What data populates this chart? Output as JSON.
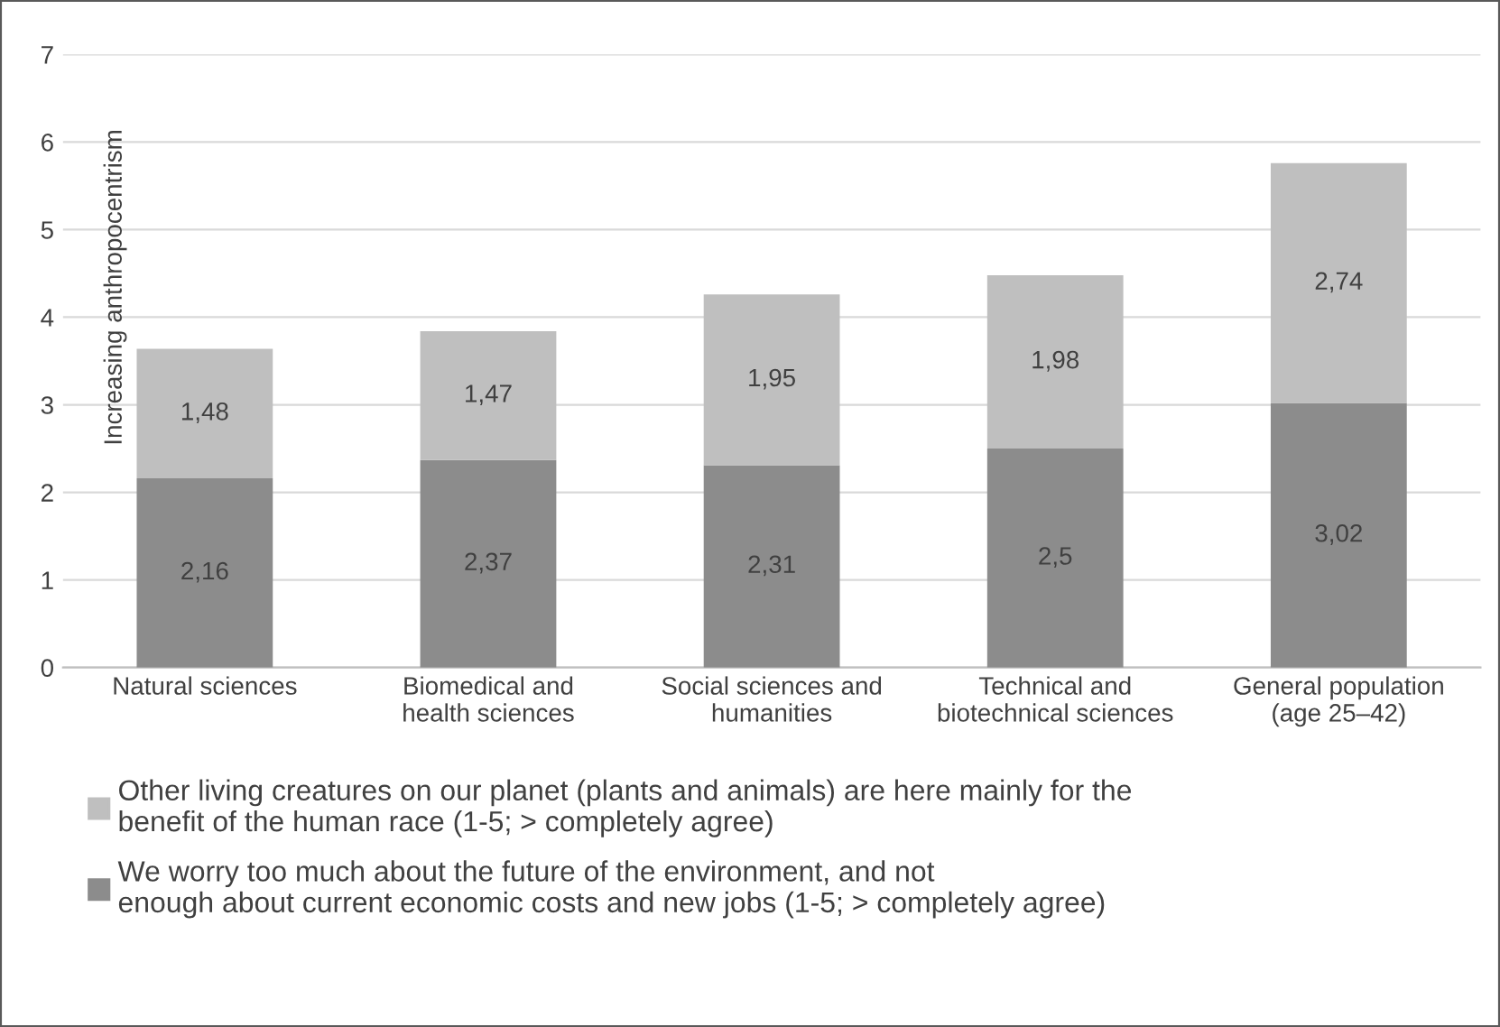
{
  "chart_data": {
    "type": "bar",
    "stacked": true,
    "categories": [
      "Natural sciences",
      "Biomedical and\nhealth sciences",
      "Social sciences and\nhumanities",
      "Technical and\nbiotechnical sciences",
      "General population\n(age 25–42)"
    ],
    "ylabel": "Increasing anthropocentrism",
    "series": [
      {
        "name": "We worry too much about the future of the environment, and not\nenough about current economic costs and new jobs (1-5; > completely agree)",
        "color": "#8c8c8c",
        "values": [
          2.16,
          2.37,
          2.31,
          2.5,
          3.02
        ],
        "value_labels": [
          "2,16",
          "2,37",
          "2,31",
          "2,5",
          "3,02"
        ]
      },
      {
        "name": "Other living creatures on our planet (plants and animals) are here mainly for the\nbenefit of the human race (1-5; > completely agree)",
        "color": "#bfbfbf",
        "values": [
          1.48,
          1.47,
          1.95,
          1.98,
          2.74
        ],
        "value_labels": [
          "1,48",
          "1,47",
          "1,95",
          "1,98",
          "2,74"
        ]
      }
    ],
    "ylim": [
      0,
      7
    ],
    "yticks": [
      0,
      1,
      2,
      3,
      4,
      5,
      6,
      7
    ],
    "grid": "y",
    "legend": "bottom"
  }
}
